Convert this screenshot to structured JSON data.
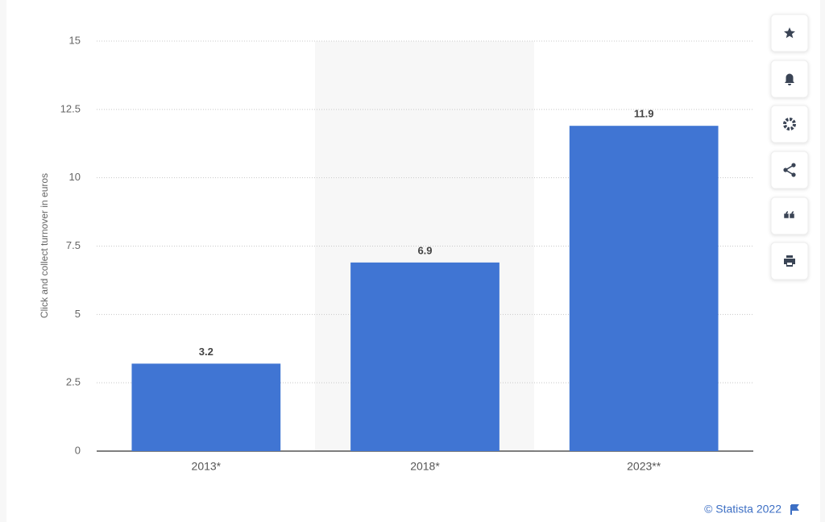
{
  "chart_data": {
    "type": "bar",
    "y_axis_label": "Click and collect turnover in euros",
    "categories": [
      "2013*",
      "2018*",
      "2023**"
    ],
    "values": [
      3.2,
      6.9,
      11.9
    ],
    "color": "#4075d3",
    "ylim": [
      0,
      15
    ],
    "yticks": [
      0,
      2.5,
      5,
      7.5,
      10,
      12.5,
      15
    ],
    "grid": true,
    "credit": "© Statista 2022"
  }
}
